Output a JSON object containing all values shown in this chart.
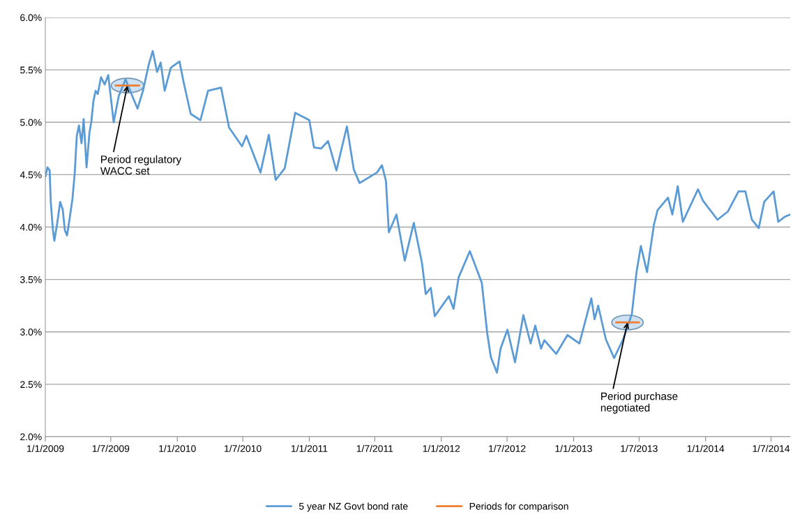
{
  "chart_data": {
    "type": "line",
    "xlim": [
      "2009-01-01",
      "2014-08-23"
    ],
    "ylim": [
      2.0,
      6.0
    ],
    "xticks": [
      {
        "value": "2009-01-01",
        "label": "1/1/2009"
      },
      {
        "value": "2009-07-01",
        "label": "1/7/2009"
      },
      {
        "value": "2010-01-01",
        "label": "1/1/2010"
      },
      {
        "value": "2010-07-01",
        "label": "1/7/2010"
      },
      {
        "value": "2011-01-01",
        "label": "1/1/2011"
      },
      {
        "value": "2011-07-01",
        "label": "1/7/2011"
      },
      {
        "value": "2012-01-01",
        "label": "1/1/2012"
      },
      {
        "value": "2012-07-01",
        "label": "1/7/2012"
      },
      {
        "value": "2013-01-01",
        "label": "1/1/2013"
      },
      {
        "value": "2013-07-01",
        "label": "1/7/2013"
      },
      {
        "value": "2014-01-01",
        "label": "1/1/2014"
      },
      {
        "value": "2014-07-01",
        "label": "1/7/2014"
      }
    ],
    "yticks": [
      {
        "value": 2.0,
        "label": "2.0%"
      },
      {
        "value": 2.5,
        "label": "2.5%"
      },
      {
        "value": 3.0,
        "label": "3.0%"
      },
      {
        "value": 3.5,
        "label": "3.5%"
      },
      {
        "value": 4.0,
        "label": "4.0%"
      },
      {
        "value": 4.5,
        "label": "4.5%"
      },
      {
        "value": 5.0,
        "label": "5.0%"
      },
      {
        "value": 5.5,
        "label": "5.5%"
      },
      {
        "value": 6.0,
        "label": "6.0%"
      }
    ],
    "grid": "y",
    "legend": "bottom",
    "marker": "none",
    "line_style": "solid",
    "series": [
      {
        "name": "5 year NZ Govt bond rate",
        "color": "#5b9bd5",
        "x": [
          "2009-01-01",
          "2009-01-07",
          "2009-01-13",
          "2009-01-16",
          "2009-01-22",
          "2009-01-26",
          "2009-02-03",
          "2009-02-11",
          "2009-02-18",
          "2009-02-24",
          "2009-03-02",
          "2009-03-10",
          "2009-03-17",
          "2009-03-23",
          "2009-03-29",
          "2009-04-04",
          "2009-04-11",
          "2009-04-17",
          "2009-04-25",
          "2009-05-03",
          "2009-05-08",
          "2009-05-14",
          "2009-05-20",
          "2009-05-26",
          "2009-06-04",
          "2009-06-14",
          "2009-06-24",
          "2009-07-09",
          "2009-07-23",
          "2009-08-11",
          "2009-08-26",
          "2009-09-13",
          "2009-09-28",
          "2009-10-14",
          "2009-10-25",
          "2009-11-06",
          "2009-11-16",
          "2009-11-27",
          "2009-12-14",
          "2010-01-07",
          "2010-01-18",
          "2010-02-07",
          "2010-03-06",
          "2010-03-27",
          "2010-05-02",
          "2010-05-24",
          "2010-06-29",
          "2010-07-11",
          "2010-08-19",
          "2010-09-11",
          "2010-09-30",
          "2010-10-25",
          "2010-11-23",
          "2011-01-01",
          "2011-01-14",
          "2011-02-03",
          "2011-02-22",
          "2011-03-17",
          "2011-04-15",
          "2011-05-04",
          "2011-05-20",
          "2011-07-07",
          "2011-07-21",
          "2011-08-01",
          "2011-08-09",
          "2011-08-30",
          "2011-09-22",
          "2011-10-17",
          "2011-11-09",
          "2011-11-19",
          "2011-12-03",
          "2011-12-14",
          "2012-01-22",
          "2012-02-04",
          "2012-02-18",
          "2012-03-20",
          "2012-04-22",
          "2012-05-07",
          "2012-05-17",
          "2012-06-03",
          "2012-06-13",
          "2012-07-02",
          "2012-07-23",
          "2012-08-15",
          "2012-09-04",
          "2012-09-17",
          "2012-10-03",
          "2012-10-12",
          "2012-11-14",
          "2012-12-15",
          "2013-01-17",
          "2013-02-19",
          "2013-02-28",
          "2013-03-10",
          "2013-03-31",
          "2013-04-23",
          "2013-05-18",
          "2013-06-11",
          "2013-06-24",
          "2013-07-06",
          "2013-07-23",
          "2013-08-11",
          "2013-08-21",
          "2013-09-19",
          "2013-10-01",
          "2013-10-16",
          "2013-10-30",
          "2013-12-11",
          "2013-12-25",
          "2014-02-03",
          "2014-03-04",
          "2014-04-02",
          "2014-04-21",
          "2014-05-09",
          "2014-05-28",
          "2014-06-12",
          "2014-07-08",
          "2014-07-21",
          "2014-08-09",
          "2014-08-23"
        ],
        "values": [
          4.48,
          4.57,
          4.54,
          4.24,
          3.97,
          3.87,
          4.04,
          4.24,
          4.17,
          3.97,
          3.92,
          4.1,
          4.27,
          4.5,
          4.87,
          4.97,
          4.8,
          5.03,
          4.57,
          4.9,
          5.0,
          5.2,
          5.3,
          5.27,
          5.43,
          5.36,
          5.45,
          5.0,
          5.25,
          5.41,
          5.28,
          5.13,
          5.3,
          5.55,
          5.68,
          5.48,
          5.57,
          5.3,
          5.52,
          5.58,
          5.39,
          5.08,
          5.02,
          5.3,
          5.33,
          4.95,
          4.77,
          4.87,
          4.52,
          4.88,
          4.45,
          4.56,
          5.09,
          5.02,
          4.76,
          4.75,
          4.82,
          4.54,
          4.96,
          4.55,
          4.42,
          4.52,
          4.59,
          4.44,
          3.95,
          4.12,
          3.68,
          4.04,
          3.65,
          3.36,
          3.42,
          3.15,
          3.34,
          3.22,
          3.52,
          3.77,
          3.47,
          2.99,
          2.76,
          2.61,
          2.84,
          3.02,
          2.71,
          3.16,
          2.89,
          3.06,
          2.84,
          2.92,
          2.79,
          2.97,
          2.89,
          3.32,
          3.12,
          3.25,
          2.93,
          2.75,
          2.93,
          3.17,
          3.57,
          3.82,
          3.57,
          4.02,
          4.16,
          4.28,
          4.12,
          4.39,
          4.05,
          4.36,
          4.25,
          4.07,
          4.15,
          4.34,
          4.34,
          4.07,
          3.99,
          4.24,
          4.34,
          4.05,
          4.1,
          4.12
        ]
      },
      {
        "name": "Periods for comparison",
        "color": "#ed7d31",
        "x": [
          "2009-07-15",
          "2009-09-17",
          "2011-01-01",
          "2013-04-29",
          "2013-06-30"
        ],
        "values": [
          5.35,
          5.35,
          null,
          3.09,
          3.09
        ]
      }
    ],
    "annotations": [
      {
        "text": "Period regulatory\nWACC set",
        "x": "2009-08-16",
        "y": 5.35
      },
      {
        "text": "Period purchase\nnegotiated",
        "x": "2013-05-30",
        "y": 3.09
      }
    ]
  }
}
